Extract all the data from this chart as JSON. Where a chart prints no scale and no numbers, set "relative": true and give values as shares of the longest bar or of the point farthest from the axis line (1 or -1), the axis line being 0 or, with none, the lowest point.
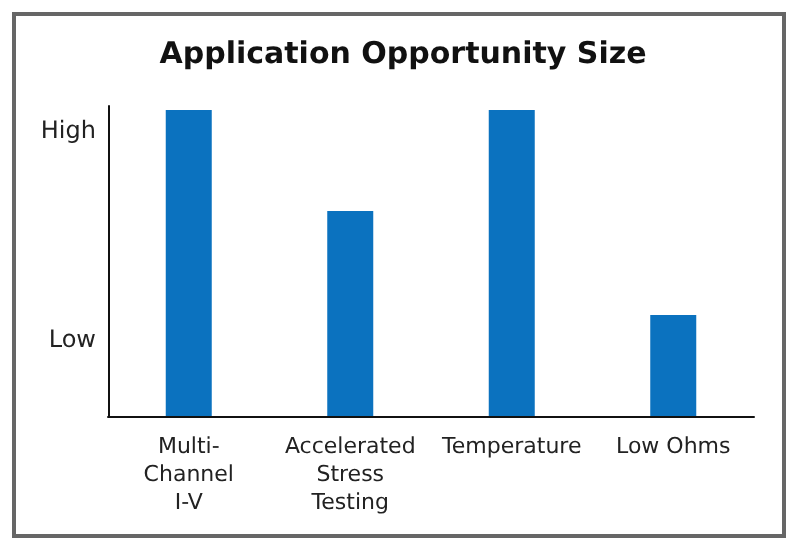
{
  "chart_data": {
    "type": "bar",
    "title": "Application Opportunity Size",
    "categories": [
      "Multi-\nChannel\nI-V",
      "Accelerated\nStress\nTesting",
      "Temperature",
      "Low Ohms"
    ],
    "values": [
      1,
      0.67,
      1,
      0.33
    ],
    "color": "#0b72bf",
    "relative": true,
    "annotations": [
      "High",
      "Low"
    ]
  }
}
